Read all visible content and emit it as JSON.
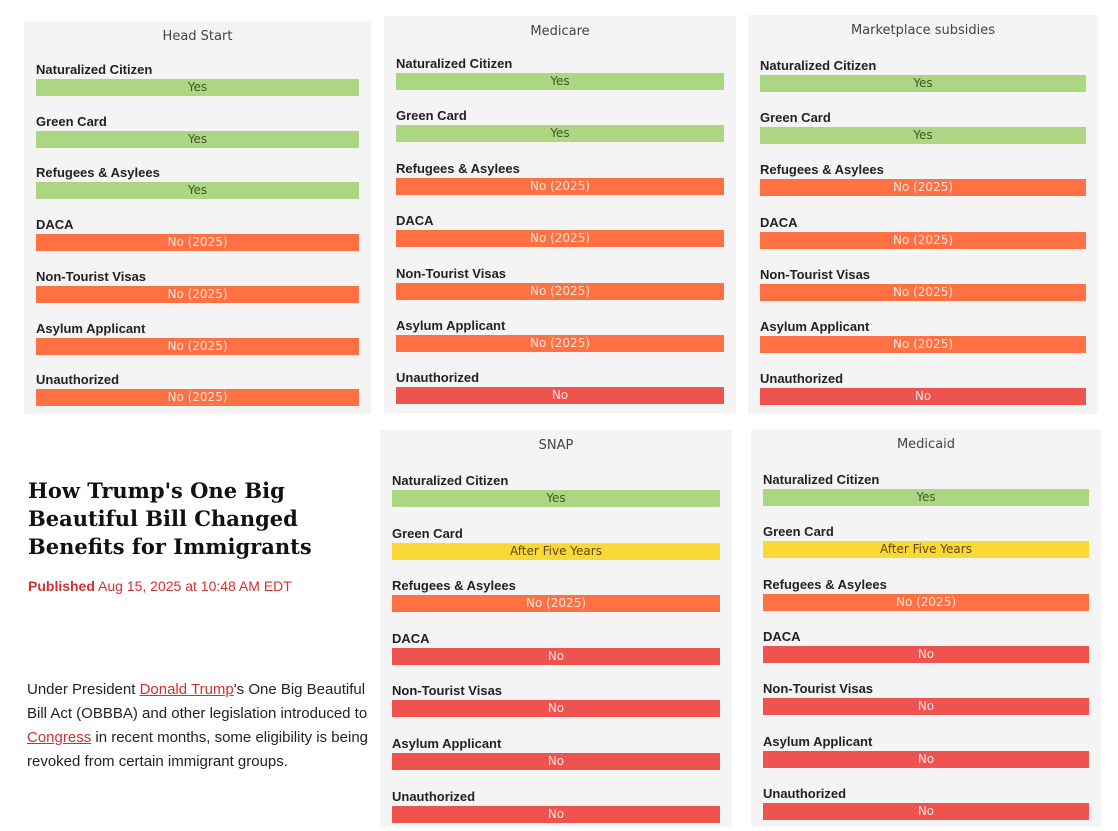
{
  "panels": {
    "headstart": {
      "title": "Head Start",
      "rows": [
        {
          "label": "Naturalized Citizen",
          "value": "Yes",
          "status": "yes"
        },
        {
          "label": "Green Card",
          "value": "Yes",
          "status": "yes"
        },
        {
          "label": "Refugees & Asylees",
          "value": "Yes",
          "status": "yes"
        },
        {
          "label": "DACA",
          "value": "No (2025)",
          "status": "no2025"
        },
        {
          "label": "Non-Tourist Visas",
          "value": "No (2025)",
          "status": "no2025"
        },
        {
          "label": "Asylum Applicant",
          "value": "No (2025)",
          "status": "no2025"
        },
        {
          "label": "Unauthorized",
          "value": "No (2025)",
          "status": "no2025"
        }
      ]
    },
    "medicare": {
      "title": "Medicare",
      "rows": [
        {
          "label": "Naturalized Citizen",
          "value": "Yes",
          "status": "yes"
        },
        {
          "label": "Green Card",
          "value": "Yes",
          "status": "yes"
        },
        {
          "label": "Refugees & Asylees",
          "value": "No (2025)",
          "status": "no2025"
        },
        {
          "label": "DACA",
          "value": "No (2025)",
          "status": "no2025"
        },
        {
          "label": "Non-Tourist Visas",
          "value": "No (2025)",
          "status": "no2025"
        },
        {
          "label": "Asylum Applicant",
          "value": "No (2025)",
          "status": "no2025"
        },
        {
          "label": "Unauthorized",
          "value": "No",
          "status": "no"
        }
      ]
    },
    "marketplace": {
      "title": "Marketplace subsidies",
      "rows": [
        {
          "label": "Naturalized Citizen",
          "value": "Yes",
          "status": "yes"
        },
        {
          "label": "Green Card",
          "value": "Yes",
          "status": "yes"
        },
        {
          "label": "Refugees & Asylees",
          "value": "No (2025)",
          "status": "no2025"
        },
        {
          "label": "DACA",
          "value": "No (2025)",
          "status": "no2025"
        },
        {
          "label": "Non-Tourist Visas",
          "value": "No (2025)",
          "status": "no2025"
        },
        {
          "label": "Asylum Applicant",
          "value": "No (2025)",
          "status": "no2025"
        },
        {
          "label": "Unauthorized",
          "value": "No",
          "status": "no"
        }
      ]
    },
    "snap": {
      "title": "SNAP",
      "rows": [
        {
          "label": "Naturalized Citizen",
          "value": "Yes",
          "status": "yes"
        },
        {
          "label": "Green Card",
          "value": "After Five Years",
          "status": "five"
        },
        {
          "label": "Refugees & Asylees",
          "value": "No (2025)",
          "status": "no2025"
        },
        {
          "label": "DACA",
          "value": "No",
          "status": "no"
        },
        {
          "label": "Non-Tourist Visas",
          "value": "No",
          "status": "no"
        },
        {
          "label": "Asylum Applicant",
          "value": "No",
          "status": "no"
        },
        {
          "label": "Unauthorized",
          "value": "No",
          "status": "no"
        }
      ]
    },
    "medicaid": {
      "title": "Medicaid",
      "rows": [
        {
          "label": "Naturalized Citizen",
          "value": "Yes",
          "status": "yes"
        },
        {
          "label": "Green Card",
          "value": "After Five Years",
          "status": "five"
        },
        {
          "label": "Refugees & Asylees",
          "value": "No (2025)",
          "status": "no2025"
        },
        {
          "label": "DACA",
          "value": "No",
          "status": "no"
        },
        {
          "label": "Non-Tourist Visas",
          "value": "No",
          "status": "no"
        },
        {
          "label": "Asylum Applicant",
          "value": "No",
          "status": "no"
        },
        {
          "label": "Unauthorized",
          "value": "No",
          "status": "no"
        }
      ]
    }
  },
  "article": {
    "headline": "How Trump's One Big Beautiful Bill Changed Benefits for Immigrants",
    "published_label": "Published",
    "published_date": "Aug 15, 2025 at 10:48 AM EDT",
    "body_part1": "Under President ",
    "body_link1": "Donald Trump",
    "body_part2": "'s One Big Beautiful Bill Act (OBBBA) and other legislation introduced to ",
    "body_link2": "Congress",
    "body_part3": " in recent months, some eligibility is being revoked from certain immigrant groups."
  },
  "colors": {
    "yes": "#acd682",
    "no_2025": "#ff7043",
    "no": "#ef5350",
    "after_five_years": "#fbd835",
    "accent": "#d32f2f"
  }
}
